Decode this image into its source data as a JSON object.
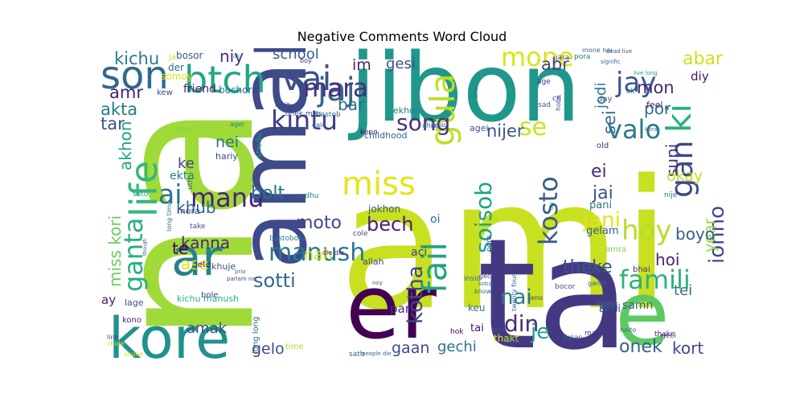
{
  "title": "Negative Comments Word Cloud",
  "words": [
    {
      "text": "na",
      "color": "#a0da39"
    },
    {
      "text": "ami",
      "color": "#c8e020"
    },
    {
      "text": "ta",
      "color": "#453882"
    },
    {
      "text": "amar",
      "color": "#3e4a89"
    },
    {
      "text": "jibon",
      "color": "#1f988b"
    },
    {
      "text": "er",
      "color": "#440154"
    },
    {
      "text": "kore",
      "color": "#21918c"
    },
    {
      "text": "e",
      "color": "#5ec962"
    },
    {
      "text": "ar",
      "color": "#26828e"
    },
    {
      "text": "son",
      "color": "#31688e"
    },
    {
      "text": "btch",
      "color": "#21a585"
    },
    {
      "text": "vai",
      "color": "#3b528b"
    },
    {
      "text": "jaj",
      "color": "#31688e"
    },
    {
      "text": "gula",
      "color": "#bddf26"
    },
    {
      "text": "mone",
      "color": "#dde318"
    },
    {
      "text": "jay",
      "color": "#39568c"
    },
    {
      "text": "ki",
      "color": "#2ab07f"
    },
    {
      "text": "life",
      "color": "#35b779"
    },
    {
      "text": "fail",
      "color": "#20a486"
    },
    {
      "text": "miss",
      "color": "#e5e419"
    },
    {
      "text": "kintu",
      "color": "#433e85"
    },
    {
      "text": "mara",
      "color": "#472d7b"
    },
    {
      "text": "valo",
      "color": "#2a788e"
    },
    {
      "text": "gan",
      "color": "#3f4788"
    },
    {
      "text": "ai",
      "color": "#2c728e"
    },
    {
      "text": "manu",
      "color": "#482475"
    },
    {
      "text": "song",
      "color": "#46327e"
    },
    {
      "text": "se",
      "color": "#cae11f"
    },
    {
      "text": "ganta",
      "color": "#29af7f"
    },
    {
      "text": "kosto",
      "color": "#365c8d"
    },
    {
      "text": "famili",
      "color": "#2db27d"
    },
    {
      "text": "manush",
      "color": "#2a788e"
    },
    {
      "text": "hoy",
      "color": "#b5de2b"
    },
    {
      "text": "jani",
      "color": "#e2e418"
    },
    {
      "text": "soisob",
      "color": "#20a386"
    },
    {
      "text": "jonno",
      "color": "#3e4989"
    },
    {
      "text": "kotha",
      "color": "#3f4788"
    },
    {
      "text": "din",
      "color": "#472a7a"
    },
    {
      "text": "nai",
      "color": "#297b8e"
    },
    {
      "text": "je",
      "color": "#1fa188"
    },
    {
      "text": "onek",
      "color": "#355f8d"
    },
    {
      "text": "sotti",
      "color": "#31678e"
    },
    {
      "text": "bech",
      "color": "#482071"
    },
    {
      "text": "moto",
      "color": "#404688"
    },
    {
      "text": "bolt",
      "color": "#2c718e"
    },
    {
      "text": "kanna",
      "color": "#482878"
    },
    {
      "text": "miss kori",
      "color": "#6ccd5a"
    },
    {
      "text": "theke",
      "color": "#3b528b"
    },
    {
      "text": "abar",
      "color": "#d0e11c"
    },
    {
      "text": "kichu",
      "color": "#287c8e"
    },
    {
      "text": "niy",
      "color": "#472d7b"
    },
    {
      "text": "amr",
      "color": "#482071"
    },
    {
      "text": "akta",
      "color": "#2a788e"
    },
    {
      "text": "tar",
      "color": "#3b528b"
    },
    {
      "text": "akhon",
      "color": "#20a386"
    },
    {
      "text": "nei",
      "color": "#2b748e"
    },
    {
      "text": "ke",
      "color": "#404588"
    },
    {
      "text": "khub",
      "color": "#31688e"
    },
    {
      "text": "te",
      "color": "#440154"
    },
    {
      "text": "ase",
      "color": "#dde318"
    },
    {
      "text": "nah",
      "color": "#d2e21b"
    },
    {
      "text": "bar",
      "color": "#2f6b8e"
    },
    {
      "text": "im",
      "color": "#482173"
    },
    {
      "text": "gesi",
      "color": "#3c4f8a"
    },
    {
      "text": "school",
      "color": "#365c8d"
    },
    {
      "text": "abr",
      "color": "#404588"
    },
    {
      "text": "mon",
      "color": "#482677"
    },
    {
      "text": "por",
      "color": "#2d708e"
    },
    {
      "text": "jodi",
      "color": "#2d708e"
    },
    {
      "text": "sei",
      "color": "#2f6b8e"
    },
    {
      "text": "nijer",
      "color": "#3a548c"
    },
    {
      "text": "jai",
      "color": "#3b518b"
    },
    {
      "text": "ei",
      "color": "#482979"
    },
    {
      "text": "suni",
      "color": "#46337f"
    },
    {
      "text": "year",
      "color": "#95d840"
    },
    {
      "text": "okay",
      "color": "#c2df23"
    },
    {
      "text": "boyo",
      "color": "#355f8d"
    },
    {
      "text": "hoi",
      "color": "#482475"
    },
    {
      "text": "tei",
      "color": "#2d708e"
    },
    {
      "text": "kort",
      "color": "#404688"
    },
    {
      "text": "gechi",
      "color": "#2c728e"
    },
    {
      "text": "gaan",
      "color": "#3f4889"
    },
    {
      "text": "gelo",
      "color": "#3e4a89"
    },
    {
      "text": "amak",
      "color": "#3b528b"
    },
    {
      "text": "ay",
      "color": "#481b6d"
    },
    {
      "text": "diy",
      "color": "#481467"
    },
    {
      "text": "ekta",
      "color": "#287d8e"
    },
    {
      "text": "friend",
      "color": "#481c6e"
    },
    {
      "text": "bosor",
      "color": "#39568c"
    },
    {
      "text": "bochor",
      "color": "#2c718e"
    },
    {
      "text": "somoy",
      "color": "#dde318"
    },
    {
      "text": "der",
      "color": "#2d708e"
    },
    {
      "text": "kew",
      "color": "#3e4989"
    },
    {
      "text": "ja",
      "color": "#b8de29"
    },
    {
      "text": "aci",
      "color": "#404588"
    },
    {
      "text": "oi",
      "color": "#2e6e8e"
    },
    {
      "text": "jokhon",
      "color": "#38598c"
    },
    {
      "text": "pani",
      "color": "#2b748e"
    },
    {
      "text": "gelam",
      "color": "#365d8d"
    },
    {
      "text": "hariy",
      "color": "#3f4788"
    },
    {
      "text": "mora",
      "color": "#3d4d8a"
    },
    {
      "text": "khuje",
      "color": "#3b528b"
    },
    {
      "text": "jete",
      "color": "#471365"
    },
    {
      "text": "kichu manush",
      "color": "#29af7f"
    },
    {
      "text": "lage",
      "color": "#3e4c8a"
    },
    {
      "text": "kono",
      "color": "#481f70"
    },
    {
      "text": "bole",
      "color": "#404688"
    },
    {
      "text": "samn",
      "color": "#34618d"
    },
    {
      "text": "achi",
      "color": "#414487"
    },
    {
      "text": "tai",
      "color": "#471063"
    },
    {
      "text": "kori",
      "color": "#3b528b"
    },
    {
      "text": "pari",
      "color": "#46317e"
    },
    {
      "text": "keu",
      "color": "#2a788e"
    },
    {
      "text": "thakt",
      "color": "#dde318"
    },
    {
      "text": "baba",
      "color": "#3d4e8a"
    },
    {
      "text": "bhai",
      "color": "#46307e"
    },
    {
      "text": "amra",
      "color": "#86d549"
    },
    {
      "text": "ekhon",
      "color": "#2a788e"
    },
    {
      "text": "agei",
      "color": "#39558c"
    },
    {
      "text": "keno",
      "color": "#46085c"
    },
    {
      "text": "childhood",
      "color": "#31678e"
    },
    {
      "text": "chilo",
      "color": "#2e6e8e"
    },
    {
      "text": "shudu",
      "color": "#1fa088"
    },
    {
      "text": "sudhu",
      "color": "#2a788e"
    },
    {
      "text": "cole",
      "color": "#3e4c8a"
    },
    {
      "text": "allah",
      "color": "#414487"
    },
    {
      "text": "pore",
      "color": "#3b528b"
    },
    {
      "text": "die die",
      "color": "#482576"
    },
    {
      "text": "long long",
      "color": "#2f6c8e"
    },
    {
      "text": "hok",
      "color": "#440154"
    },
    {
      "text": "time",
      "color": "#b2dd2d"
    },
    {
      "text": "sath",
      "color": "#33638d"
    },
    {
      "text": "jara",
      "color": "#414487"
    },
    {
      "text": "pora",
      "color": "#2c718e"
    },
    {
      "text": "mone hoi",
      "color": "#306a8e"
    },
    {
      "text": "age",
      "color": "#46337f"
    },
    {
      "text": "cri",
      "color": "#3f4788"
    },
    {
      "text": "sad",
      "color": "#355e8d"
    },
    {
      "text": "day",
      "color": "#365c8d"
    },
    {
      "text": "old",
      "color": "#472f7d"
    },
    {
      "text": "feel",
      "color": "#481c6e"
    },
    {
      "text": "ek",
      "color": "#2e6f8e"
    },
    {
      "text": "nije",
      "color": "#29798e"
    },
    {
      "text": "take",
      "color": "#3b528b"
    },
    {
      "text": "boy",
      "color": "#472e7c"
    },
    {
      "text": "ak",
      "color": "#1f958b"
    },
    {
      "text": "majh",
      "color": "#3c4f8a"
    },
    {
      "text": "ager",
      "color": "#27808e"
    },
    {
      "text": "vitor",
      "color": "#7fd34e"
    },
    {
      "text": "soto",
      "color": "#1fa188"
    },
    {
      "text": "uth",
      "color": "#35608d"
    },
    {
      "text": "long time",
      "color": "#2a788e"
    },
    {
      "text": "onek miss",
      "color": "#3b528b"
    },
    {
      "text": "bastob",
      "color": "#31678e"
    },
    {
      "text": "bastobota",
      "color": "#2a788e"
    },
    {
      "text": "galo",
      "color": "#2e6e8e"
    },
    {
      "text": "gulo",
      "color": "#404688"
    },
    {
      "text": "hobe",
      "color": "#3b518b"
    },
    {
      "text": "dokan",
      "color": "#30698e"
    },
    {
      "text": "bro",
      "color": "#26828e"
    },
    {
      "text": "bocor",
      "color": "#3b518b"
    },
    {
      "text": "know",
      "color": "#2c728e"
    },
    {
      "text": "jeno",
      "color": "#414487"
    },
    {
      "text": "make",
      "color": "#46327e"
    },
    {
      "text": "listen",
      "color": "#2d708e"
    },
    {
      "text": "ganer",
      "color": "#33638d"
    },
    {
      "text": "hoito",
      "color": "#355f8d"
    },
    {
      "text": "geci",
      "color": "#3e4a89"
    },
    {
      "text": "thake",
      "color": "#481467"
    },
    {
      "text": "insid",
      "color": "#306a8e"
    },
    {
      "text": "line",
      "color": "#3c4f8a"
    },
    {
      "text": "chole",
      "color": "#c0df25"
    },
    {
      "text": "shune",
      "color": "#d8e219"
    },
    {
      "text": "prio",
      "color": "#2c728e"
    },
    {
      "text": "parlam na",
      "color": "#3f4788"
    },
    {
      "text": "noy",
      "color": "#355f8d"
    },
    {
      "text": "sobar",
      "color": "#2a788e"
    },
    {
      "text": "gech",
      "color": "#3e4c8a"
    },
    {
      "text": "twenty four",
      "color": "#31678e"
    },
    {
      "text": "koto",
      "color": "#3b528b"
    },
    {
      "text": "apnar",
      "color": "#39568c"
    },
    {
      "text": "kora",
      "color": "#2a788e"
    },
    {
      "text": "signific",
      "color": "#2f6c8e"
    },
    {
      "text": "dead live",
      "color": "#3b528b"
    },
    {
      "text": "ami",
      "color": "#2c728e"
    },
    {
      "text": "live long",
      "color": "#20a386"
    },
    {
      "text": "people die",
      "color": "#31678e"
    },
    {
      "text": "dei",
      "color": "#2c728e"
    },
    {
      "text": "though",
      "color": "#3e4a89"
    }
  ]
}
